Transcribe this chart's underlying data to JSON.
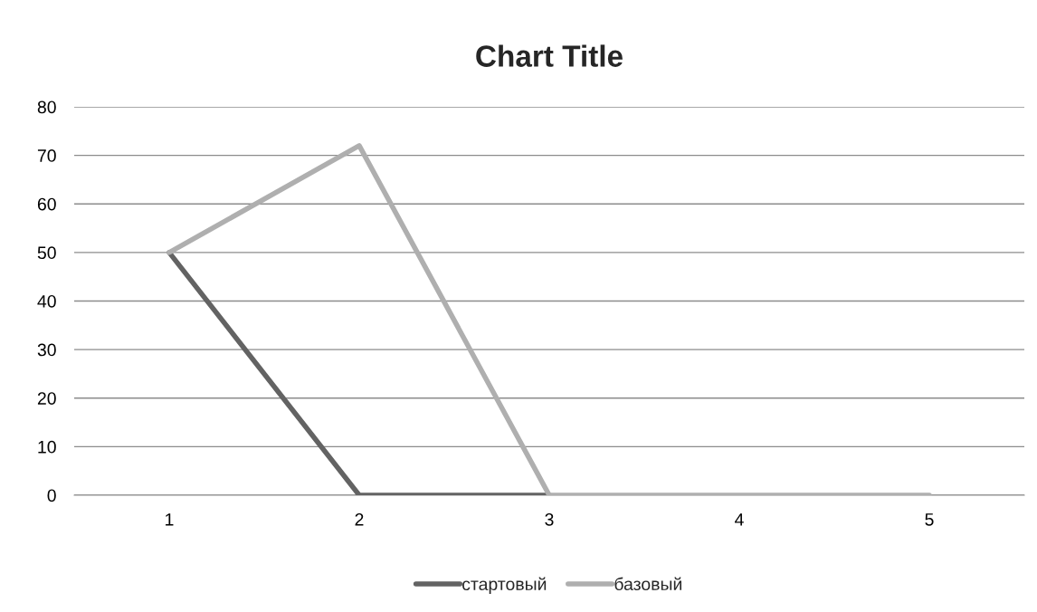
{
  "chart_data": {
    "type": "line",
    "title": "Chart Title",
    "categories": [
      "1",
      "2",
      "3",
      "4",
      "5"
    ],
    "series": [
      {
        "name": "стартовый",
        "color": "#636363",
        "values": [
          50,
          0,
          0,
          null,
          null
        ]
      },
      {
        "name": "базовый",
        "color": "#afafaf",
        "values": [
          50,
          72,
          0,
          0,
          0
        ]
      }
    ],
    "ylim": [
      0,
      80
    ],
    "yticks": [
      0,
      10,
      20,
      30,
      40,
      50,
      60,
      70,
      80
    ],
    "grid": "y",
    "legend": "bottom",
    "marker": "none",
    "line_style": "solid"
  }
}
